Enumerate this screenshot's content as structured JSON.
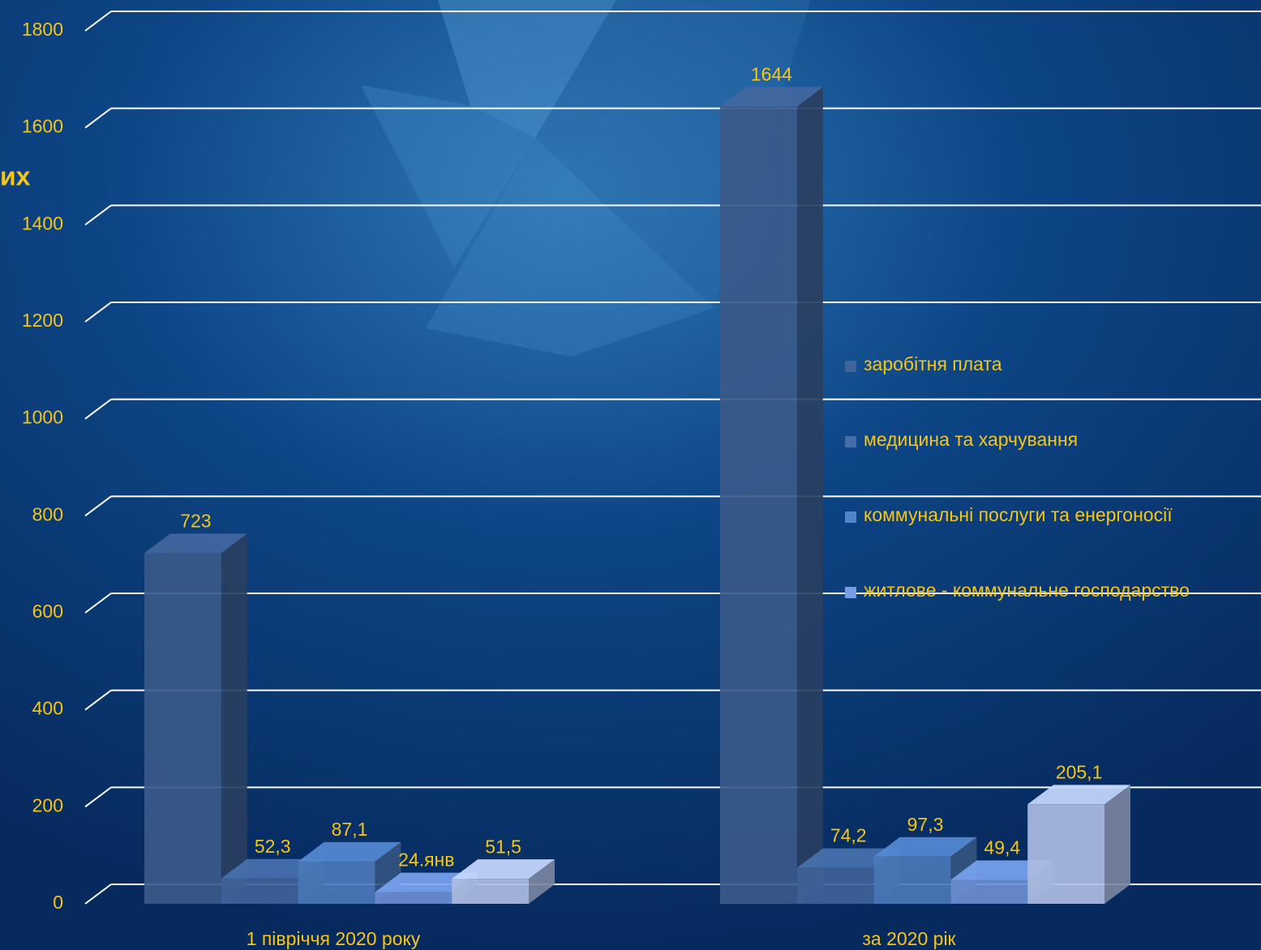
{
  "chart_data": {
    "type": "bar3d",
    "title": "их",
    "categories": [
      "1 півріччя 2020 року",
      "за 2020 рік"
    ],
    "series": [
      {
        "name": "заробітня плата",
        "color": "#3a5a8a",
        "values": [
          723,
          1644
        ],
        "value_labels": [
          "723",
          "1644"
        ]
      },
      {
        "name": "медицина та харчування",
        "color": "#3e6398",
        "values": [
          52.3,
          74.2
        ],
        "value_labels": [
          "52,3",
          "74,2"
        ]
      },
      {
        "name": "коммунальні послуги та енергоносії",
        "color": "#4a78b8",
        "values": [
          87.1,
          97.3
        ],
        "value_labels": [
          "87,1",
          "97,3"
        ]
      },
      {
        "name": "житлове - коммунальне господарство",
        "color": "#6a8ed0",
        "values": [
          24.1,
          49.4
        ],
        "value_labels": [
          "24.янв",
          "49,4"
        ]
      },
      {
        "color": "#adbde3",
        "values": [
          51.5,
          205.1
        ],
        "value_labels": [
          "51,5",
          "205,1"
        ]
      }
    ],
    "ylim": [
      0,
      1800
    ],
    "yticks": [
      0,
      200,
      400,
      600,
      800,
      1000,
      1200,
      1400,
      1600,
      1800
    ],
    "grid": true,
    "legend": "right"
  }
}
